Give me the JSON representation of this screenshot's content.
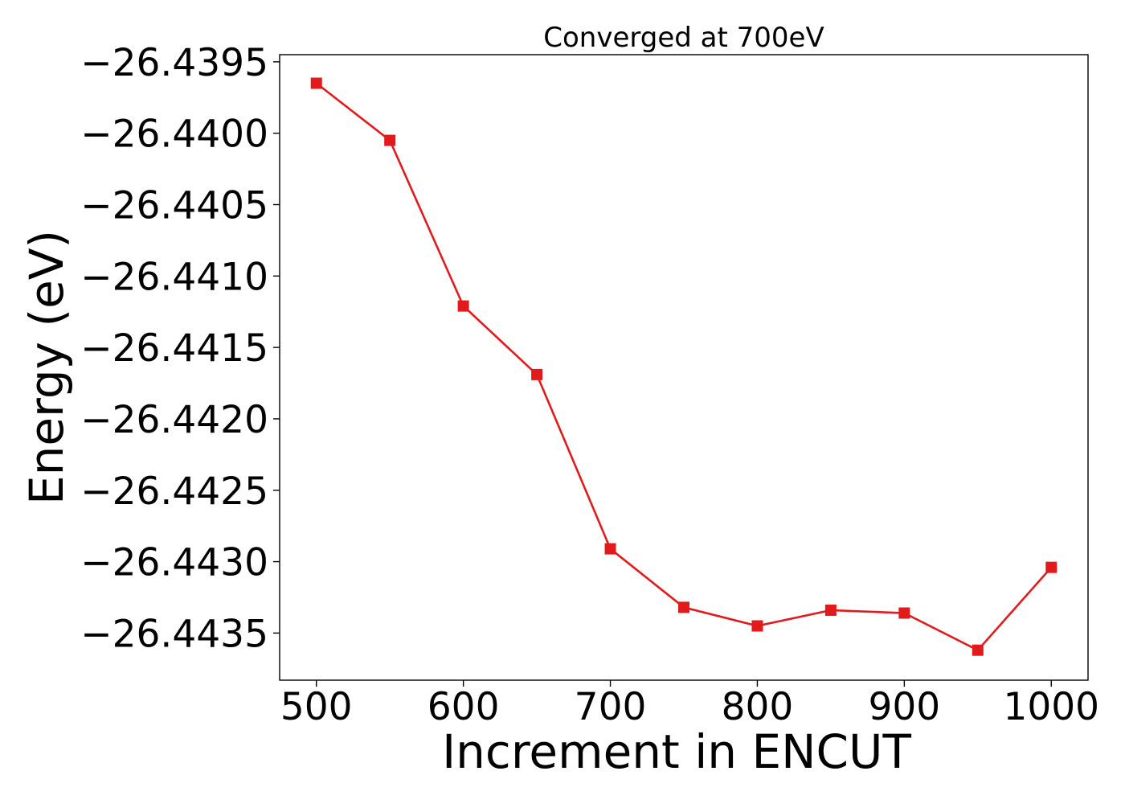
{
  "chart_data": {
    "type": "line",
    "title": "Converged at 700eV",
    "xlabel": "Increment in ENCUT",
    "ylabel": "Energy (eV)",
    "x": [
      500,
      550,
      600,
      650,
      700,
      750,
      800,
      850,
      900,
      950,
      1000
    ],
    "series": [
      {
        "values": [
          -26.43965,
          -26.44005,
          -26.44121,
          -26.44169,
          -26.44291,
          -26.44332,
          -26.44345,
          -26.44334,
          -26.44336,
          -26.44362,
          -26.44304
        ],
        "color": "#e31a1c",
        "marker": "square"
      }
    ],
    "xticks": [
      500,
      600,
      700,
      800,
      900,
      1000
    ],
    "xtick_labels": [
      "500",
      "600",
      "700",
      "800",
      "900",
      "1000"
    ],
    "yticks": [
      -26.4395,
      -26.44,
      -26.4405,
      -26.441,
      -26.4415,
      -26.442,
      -26.4425,
      -26.443,
      -26.4435
    ],
    "ytick_labels": [
      "−26.4395",
      "−26.4400",
      "−26.4405",
      "−26.4410",
      "−26.4415",
      "−26.4420",
      "−26.4425",
      "−26.4430",
      "−26.4435"
    ],
    "xlim": [
      475,
      1025
    ],
    "ylim": [
      -26.44383,
      -26.43945
    ],
    "grid": false,
    "legend": "none"
  }
}
